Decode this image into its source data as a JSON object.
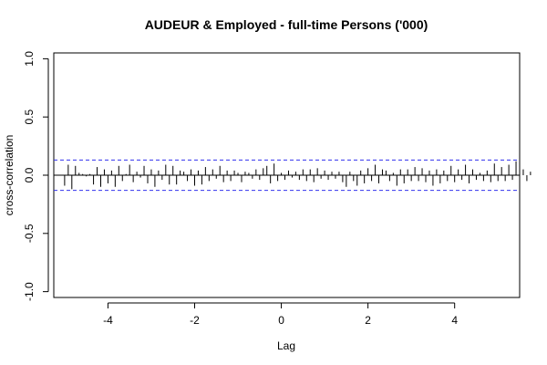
{
  "chart_data": {
    "type": "bar",
    "title": "AUDEUR & Employed - full-time Persons ('000)",
    "xlabel": "Lag",
    "ylabel": "cross-correlation",
    "xlim": [
      -5.25,
      5.5
    ],
    "ylim": [
      -1.05,
      1.05
    ],
    "x_ticks": [
      -4,
      -2,
      0,
      2,
      4
    ],
    "y_ticks": [
      -1.0,
      -0.5,
      0.0,
      0.5,
      1.0
    ],
    "x_tick_labels": [
      "-4",
      "-2",
      "0",
      "2",
      "4"
    ],
    "y_tick_labels": [
      "-1.0",
      "-0.5",
      "0.0",
      "0.5",
      "1.0"
    ],
    "confidence_band": 0.13,
    "colors": {
      "bars": "#000000",
      "band": "#3333ee",
      "zero_line": "#000000",
      "frame": "#000000"
    },
    "grid": false,
    "lag_start": -5.0,
    "lag_step": 0.0833333,
    "values": [
      -0.09,
      0.09,
      -0.12,
      0.08,
      0.02,
      0.01,
      -0.01,
      0.01,
      -0.08,
      0.07,
      -0.1,
      0.05,
      -0.07,
      0.04,
      -0.1,
      0.08,
      -0.05,
      0.01,
      0.09,
      -0.06,
      0.03,
      -0.02,
      0.08,
      -0.07,
      0.05,
      -0.1,
      0.04,
      -0.04,
      0.09,
      -0.08,
      0.08,
      -0.08,
      0.04,
      0.03,
      -0.05,
      0.05,
      -0.09,
      0.04,
      -0.08,
      0.07,
      -0.05,
      0.05,
      -0.03,
      0.08,
      -0.06,
      0.04,
      -0.05,
      0.04,
      0.02,
      -0.06,
      0.03,
      0.02,
      -0.03,
      0.05,
      -0.04,
      0.06,
      0.08,
      -0.07,
      0.1,
      -0.05,
      0.02,
      -0.04,
      0.04,
      -0.02,
      0.03,
      -0.04,
      0.05,
      -0.05,
      0.05,
      -0.06,
      0.06,
      -0.03,
      0.04,
      -0.04,
      0.03,
      -0.03,
      0.03,
      -0.06,
      -0.1,
      0.03,
      -0.05,
      -0.09,
      0.04,
      -0.07,
      0.06,
      -0.05,
      0.09,
      -0.07,
      0.05,
      0.04,
      -0.05,
      0.02,
      -0.09,
      0.05,
      -0.07,
      0.05,
      -0.05,
      0.07,
      -0.05,
      0.06,
      -0.06,
      0.04,
      -0.09,
      0.05,
      -0.07,
      0.04,
      -0.05,
      0.08,
      -0.06,
      0.05,
      -0.04,
      0.09,
      -0.07,
      0.05,
      -0.04,
      0.02,
      -0.05,
      0.04,
      -0.06,
      0.1,
      -0.05,
      0.07,
      -0.05,
      0.09,
      -0.04,
      0.12,
      -0.03,
      0.05,
      -0.05,
      0.03
    ]
  }
}
